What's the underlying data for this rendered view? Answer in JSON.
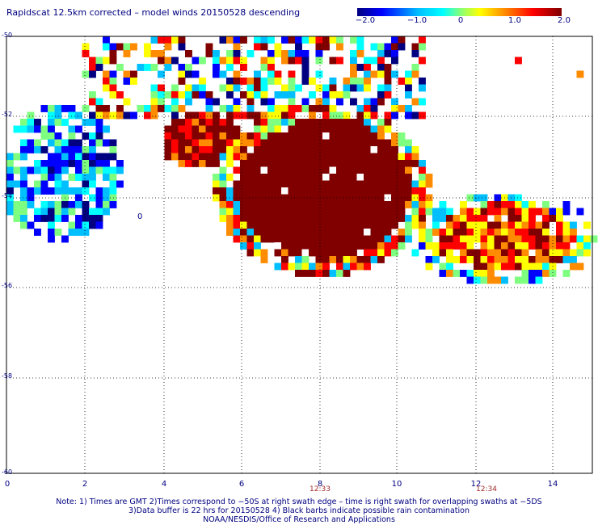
{
  "title": "Rapidscat 12.5km corrected – model winds 20150528 descending",
  "colorbar": {
    "ticks": [
      "−2.0",
      "−1.0",
      "0",
      "1.0",
      "2.0"
    ],
    "colors": [
      "#000080",
      "#0000ff",
      "#00bfff",
      "#00ffff",
      "#7fff7f",
      "#ffff00",
      "#ff8c00",
      "#ff0000",
      "#800000"
    ]
  },
  "axes": {
    "y_ticks": [
      "-50",
      "-52",
      "-54",
      "-56",
      "-58",
      "-60"
    ],
    "x_ticks": [
      "0",
      "2",
      "4",
      "6",
      "8",
      "10",
      "12",
      "14"
    ],
    "time_labels": [
      "12:33",
      "12:34"
    ],
    "contour_label": "0"
  },
  "notes": [
    "Note: 1) Times are GMT 2)Times correspond to −50S at right swath edge – time is right swath for overlapping swaths at −5DS",
    "3)Data buffer is 22 hrs for 20150528 4) Black barbs indicate possible rain contamination",
    "NOAA/NESDIS/Office of Research and Applications"
  ]
}
